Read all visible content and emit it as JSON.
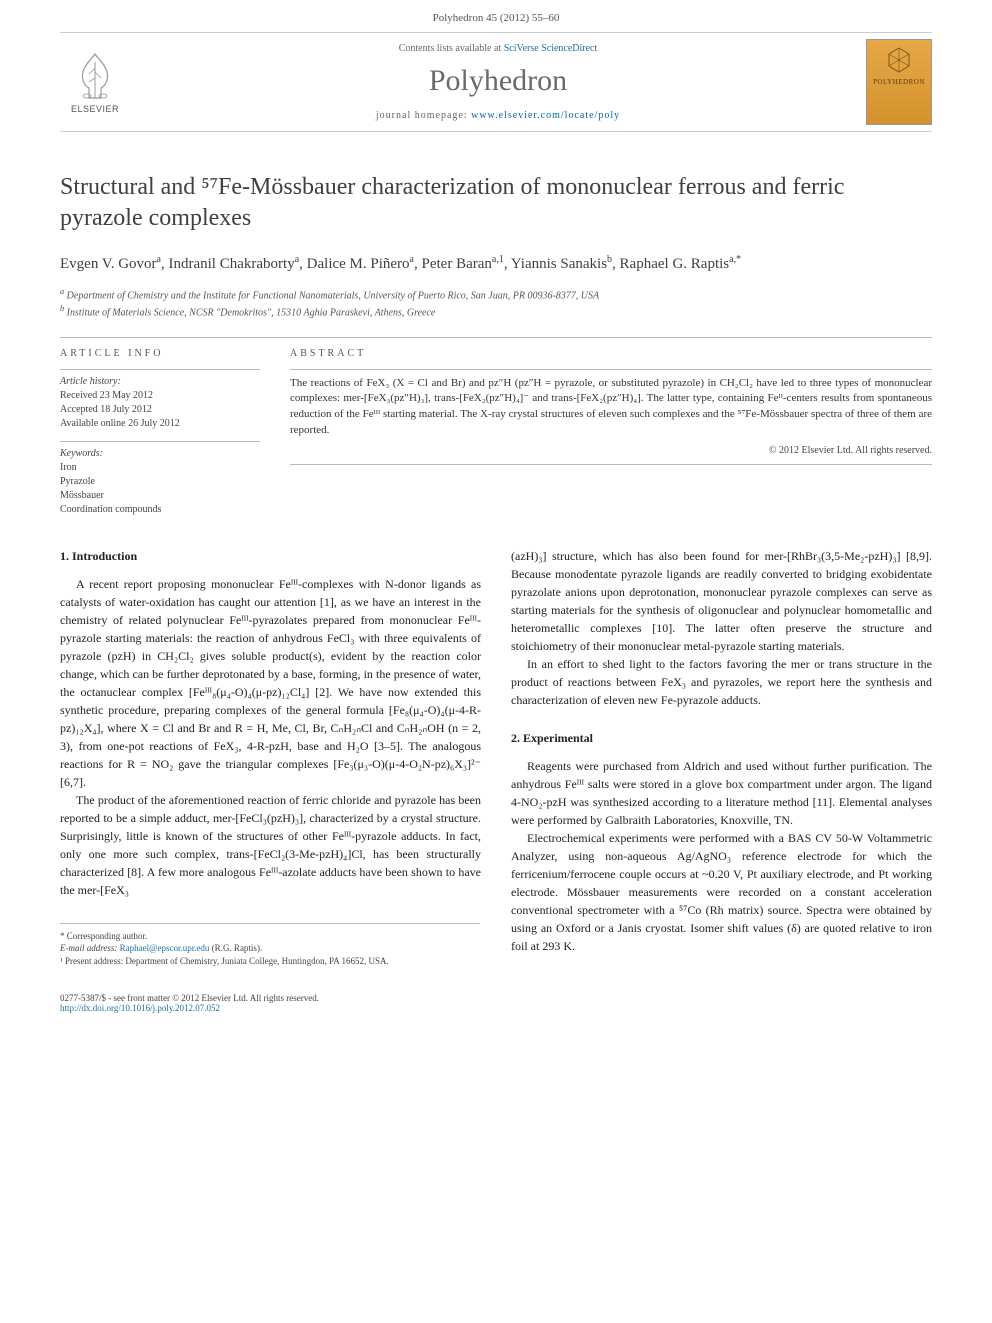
{
  "page_header": "Polyhedron 45 (2012) 55–60",
  "masthead": {
    "elsevier_label": "ELSEVIER",
    "contents_prefix": "Contents lists available at ",
    "contents_link": "SciVerse ScienceDirect",
    "journal_name": "Polyhedron",
    "homepage_prefix": "journal homepage: ",
    "homepage_url": "www.elsevier.com/locate/poly",
    "cover_label": "POLYHEDRON"
  },
  "title": "Structural and ⁵⁷Fe-Mössbauer characterization of mononuclear ferrous and ferric pyrazole complexes",
  "authors_html": "Evgen V. Govor<sup>a</sup>, Indranil Chakraborty<sup>a</sup>, Dalice M. Piñero<sup>a</sup>, Peter Baran<sup>a,1</sup>, Yiannis Sanakis<sup>b</sup>, Raphael G. Raptis<sup>a,*</sup>",
  "affiliations": {
    "a": "Department of Chemistry and the Institute for Functional Nanomaterials, University of Puerto Rico, San Juan, PR 00936-8377, USA",
    "b": "Institute of Materials Science, NCSR \"Demokritos\", 15310 Aghia Paraskevi, Athens, Greece"
  },
  "article_info": {
    "heading": "ARTICLE INFO",
    "history_label": "Article history:",
    "received": "Received 23 May 2012",
    "accepted": "Accepted 18 July 2012",
    "online": "Available online 26 July 2012",
    "keywords_label": "Keywords:",
    "keywords": [
      "Iron",
      "Pyrazole",
      "Mössbauer",
      "Coordination compounds"
    ]
  },
  "abstract": {
    "heading": "ABSTRACT",
    "text": "The reactions of FeX₃ (X = Cl and Br) and pz″H (pz″H = pyrazole, or substituted pyrazole) in CH₂Cl₂ have led to three types of mononuclear complexes: mer-[FeX₃(pz″H)₃], trans-[FeX₂(pz″H)₄]⁻ and trans-[FeX₂(pz″H)₄]. The latter type, containing Feᴵᴵ-centers results from spontaneous reduction of the Feᴵᴵᴵ starting material. The X-ray crystal structures of eleven such complexes and the ⁵⁷Fe-Mössbauer spectra of three of them are reported.",
    "copyright": "© 2012 Elsevier Ltd. All rights reserved."
  },
  "section1": {
    "heading": "1. Introduction",
    "p1": "A recent report proposing mononuclear Feᴵᴵᴵ-complexes with N-donor ligands as catalysts of water-oxidation has caught our attention [1], as we have an interest in the chemistry of related polynuclear Feᴵᴵᴵ-pyrazolates prepared from mononuclear Feᴵᴵᴵ-pyrazole starting materials: the reaction of anhydrous FeCl₃ with three equivalents of pyrazole (pzH) in CH₂Cl₂ gives soluble product(s), evident by the reaction color change, which can be further deprotonated by a base, forming, in the presence of water, the octanuclear complex [Feᴵᴵᴵ₈(μ₄-O)₄(μ-pz)₁₂Cl₄] [2]. We have now extended this synthetic procedure, preparing complexes of the general formula [Fe₈(μ₄-O)₄(μ-4-R-pz)₁₂X₄], where X = Cl and Br and R = H, Me, Cl, Br, CₙH₂ₙCl and CₙH₂ₙOH (n = 2, 3), from one-pot reactions of FeX₃, 4-R-pzH, base and H₂O [3–5]. The analogous reactions for R = NO₂ gave the triangular complexes [Fe₃(μ₃-O)(μ-4-O₂N-pz)₆X₃]²⁻ [6,7].",
    "p2": "The product of the aforementioned reaction of ferric chloride and pyrazole has been reported to be a simple adduct, mer-[FeCl₃(pzH)₃], characterized by a crystal structure. Surprisingly, little is known of the structures of other Feᴵᴵᴵ-pyrazole adducts. In fact, only one more such complex, trans-[FeCl₂(3-Me-pzH)₄]Cl, has been structurally characterized [8]. A few more analogous Feᴵᴵᴵ-azolate adducts have been shown to have the mer-[FeX₃",
    "p3_right": "(azH)₃] structure, which has also been found for mer-[RhBr₃(3,5-Me₂-pzH)₃] [8,9]. Because monodentate pyrazole ligands are readily converted to bridging exobidentate pyrazolate anions upon deprotonation, mononuclear pyrazole complexes can serve as starting materials for the synthesis of oligonuclear and polynuclear homometallic and heterometallic complexes [10]. The latter often preserve the structure and stoichiometry of their mononuclear metal-pyrazole starting materials.",
    "p4_right": "In an effort to shed light to the factors favoring the mer or trans structure in the product of reactions between FeX₃ and pyrazoles, we report here the synthesis and characterization of eleven new Fe-pyrazole adducts."
  },
  "section2": {
    "heading": "2. Experimental",
    "p1": "Reagents were purchased from Aldrich and used without further purification. The anhydrous Feᴵᴵᴵ salts were stored in a glove box compartment under argon. The ligand 4-NO₂-pzH was synthesized according to a literature method [11]. Elemental analyses were performed by Galbraith Laboratories, Knoxville, TN.",
    "p2": "Electrochemical experiments were performed with a BAS CV 50-W Voltammetric Analyzer, using non-aqueous Ag/AgNO₃ reference electrode for which the ferricenium/ferrocene couple occurs at ~0.20 V, Pt auxiliary electrode, and Pt working electrode. Mössbauer measurements were recorded on a constant acceleration conventional spectrometer with a ⁵⁷Co (Rh matrix) source. Spectra were obtained by using an Oxford or a Janis cryostat. Isomer shift values (δ) are quoted relative to iron foil at 293 K."
  },
  "footnotes": {
    "corr": "* Corresponding author.",
    "email_label": "E-mail address: ",
    "email": "Raphael@epscor.upr.edu",
    "email_suffix": " (R.G. Raptis).",
    "present": "¹ Present address: Department of Chemistry, Juniata College, Huntingdon, PA 16652, USA."
  },
  "bottom": {
    "issn": "0277-5387/$ - see front matter © 2012 Elsevier Ltd. All rights reserved.",
    "doi": "http://dx.doi.org/10.1016/j.poly.2012.07.052"
  },
  "colors": {
    "link": "#1b6fa6",
    "text": "#333333",
    "heading_gray": "#6a6a6a",
    "border": "#bbbbbb"
  }
}
